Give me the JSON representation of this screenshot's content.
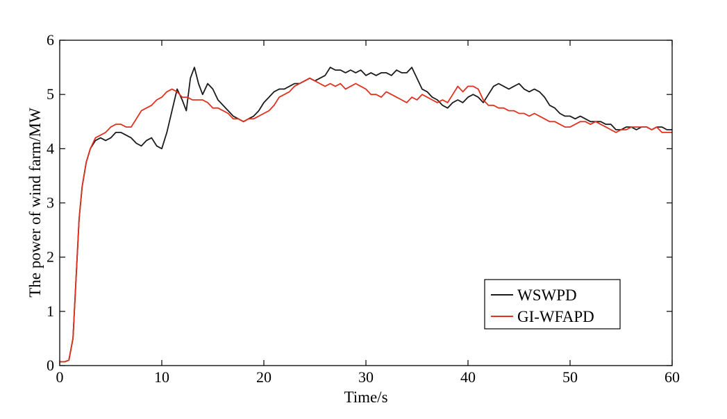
{
  "chart_data": {
    "type": "line",
    "title": "",
    "xlabel": "Time/s",
    "ylabel": "The power of wind farm/MW",
    "xlim": [
      0,
      60
    ],
    "ylim": [
      0,
      6
    ],
    "xticks": [
      0,
      10,
      20,
      30,
      40,
      50,
      60
    ],
    "yticks": [
      0,
      1,
      2,
      3,
      4,
      5,
      6
    ],
    "grid": false,
    "legend_position": "bottom-right",
    "series": [
      {
        "name": "WSWPD",
        "color": "#1a1a1a",
        "points": [
          [
            0,
            0.07
          ],
          [
            0.5,
            0.07
          ],
          [
            0.9,
            0.1
          ],
          [
            1.3,
            0.5
          ],
          [
            1.6,
            1.6
          ],
          [
            1.9,
            2.7
          ],
          [
            2.2,
            3.3
          ],
          [
            2.6,
            3.75
          ],
          [
            3.0,
            4.0
          ],
          [
            3.5,
            4.15
          ],
          [
            4.0,
            4.2
          ],
          [
            4.5,
            4.15
          ],
          [
            5.0,
            4.2
          ],
          [
            5.5,
            4.3
          ],
          [
            6.0,
            4.3
          ],
          [
            6.5,
            4.25
          ],
          [
            7.0,
            4.2
          ],
          [
            7.5,
            4.1
          ],
          [
            8.0,
            4.05
          ],
          [
            8.5,
            4.15
          ],
          [
            9.0,
            4.2
          ],
          [
            9.5,
            4.05
          ],
          [
            10.0,
            4.0
          ],
          [
            10.5,
            4.3
          ],
          [
            11.0,
            4.7
          ],
          [
            11.5,
            5.1
          ],
          [
            12.0,
            4.9
          ],
          [
            12.4,
            4.7
          ],
          [
            12.8,
            5.3
          ],
          [
            13.2,
            5.5
          ],
          [
            13.6,
            5.2
          ],
          [
            14.0,
            5.0
          ],
          [
            14.5,
            5.2
          ],
          [
            15.0,
            5.1
          ],
          [
            15.5,
            4.9
          ],
          [
            16.0,
            4.8
          ],
          [
            16.5,
            4.7
          ],
          [
            17.0,
            4.6
          ],
          [
            17.5,
            4.55
          ],
          [
            18.0,
            4.5
          ],
          [
            18.5,
            4.55
          ],
          [
            19.0,
            4.6
          ],
          [
            19.5,
            4.7
          ],
          [
            20.0,
            4.85
          ],
          [
            20.5,
            4.95
          ],
          [
            21.0,
            5.05
          ],
          [
            21.5,
            5.1
          ],
          [
            22.0,
            5.1
          ],
          [
            22.5,
            5.15
          ],
          [
            23.0,
            5.2
          ],
          [
            23.5,
            5.2
          ],
          [
            24.0,
            5.25
          ],
          [
            24.5,
            5.3
          ],
          [
            25.0,
            5.25
          ],
          [
            25.5,
            5.3
          ],
          [
            26.0,
            5.35
          ],
          [
            26.5,
            5.5
          ],
          [
            27.0,
            5.45
          ],
          [
            27.5,
            5.45
          ],
          [
            28.0,
            5.4
          ],
          [
            28.5,
            5.45
          ],
          [
            29.0,
            5.4
          ],
          [
            29.5,
            5.45
          ],
          [
            30.0,
            5.35
          ],
          [
            30.5,
            5.4
          ],
          [
            31.0,
            5.35
          ],
          [
            31.5,
            5.4
          ],
          [
            32.0,
            5.4
          ],
          [
            32.5,
            5.35
          ],
          [
            33.0,
            5.45
          ],
          [
            33.5,
            5.4
          ],
          [
            34.0,
            5.4
          ],
          [
            34.5,
            5.5
          ],
          [
            35.0,
            5.3
          ],
          [
            35.5,
            5.1
          ],
          [
            36.0,
            5.05
          ],
          [
            36.5,
            4.95
          ],
          [
            37.0,
            4.9
          ],
          [
            37.5,
            4.8
          ],
          [
            38.0,
            4.75
          ],
          [
            38.5,
            4.85
          ],
          [
            39.0,
            4.9
          ],
          [
            39.5,
            4.85
          ],
          [
            40.0,
            4.95
          ],
          [
            40.5,
            5.0
          ],
          [
            41.0,
            4.95
          ],
          [
            41.5,
            4.85
          ],
          [
            42.0,
            5.0
          ],
          [
            42.5,
            5.15
          ],
          [
            43.0,
            5.2
          ],
          [
            43.5,
            5.15
          ],
          [
            44.0,
            5.1
          ],
          [
            44.5,
            5.15
          ],
          [
            45.0,
            5.2
          ],
          [
            45.5,
            5.1
          ],
          [
            46.0,
            5.05
          ],
          [
            46.5,
            5.1
          ],
          [
            47.0,
            5.05
          ],
          [
            47.5,
            4.95
          ],
          [
            48.0,
            4.8
          ],
          [
            48.5,
            4.75
          ],
          [
            49.0,
            4.65
          ],
          [
            49.5,
            4.6
          ],
          [
            50.0,
            4.6
          ],
          [
            50.5,
            4.55
          ],
          [
            51.0,
            4.6
          ],
          [
            51.5,
            4.55
          ],
          [
            52.0,
            4.5
          ],
          [
            52.5,
            4.5
          ],
          [
            53.0,
            4.5
          ],
          [
            53.5,
            4.45
          ],
          [
            54.0,
            4.45
          ],
          [
            54.5,
            4.35
          ],
          [
            55.0,
            4.35
          ],
          [
            55.5,
            4.4
          ],
          [
            56.0,
            4.4
          ],
          [
            56.5,
            4.35
          ],
          [
            57.0,
            4.4
          ],
          [
            57.5,
            4.4
          ],
          [
            58.0,
            4.35
          ],
          [
            58.5,
            4.4
          ],
          [
            59.0,
            4.4
          ],
          [
            59.5,
            4.35
          ],
          [
            60.0,
            4.35
          ]
        ]
      },
      {
        "name": "GI-WFAPD",
        "color": "#e0301e",
        "points": [
          [
            0,
            0.07
          ],
          [
            0.5,
            0.07
          ],
          [
            0.9,
            0.1
          ],
          [
            1.3,
            0.5
          ],
          [
            1.6,
            1.6
          ],
          [
            1.9,
            2.7
          ],
          [
            2.2,
            3.3
          ],
          [
            2.6,
            3.75
          ],
          [
            3.0,
            4.0
          ],
          [
            3.5,
            4.2
          ],
          [
            4.0,
            4.25
          ],
          [
            4.5,
            4.3
          ],
          [
            5.0,
            4.4
          ],
          [
            5.5,
            4.45
          ],
          [
            6.0,
            4.45
          ],
          [
            6.5,
            4.4
          ],
          [
            7.0,
            4.4
          ],
          [
            7.5,
            4.55
          ],
          [
            8.0,
            4.7
          ],
          [
            8.5,
            4.75
          ],
          [
            9.0,
            4.8
          ],
          [
            9.5,
            4.9
          ],
          [
            10.0,
            4.95
          ],
          [
            10.5,
            5.05
          ],
          [
            11.0,
            5.1
          ],
          [
            11.5,
            5.05
          ],
          [
            12.0,
            4.95
          ],
          [
            12.5,
            4.95
          ],
          [
            13.0,
            4.9
          ],
          [
            13.5,
            4.9
          ],
          [
            14.0,
            4.9
          ],
          [
            14.5,
            4.85
          ],
          [
            15.0,
            4.75
          ],
          [
            15.5,
            4.75
          ],
          [
            16.0,
            4.7
          ],
          [
            16.5,
            4.65
          ],
          [
            17.0,
            4.55
          ],
          [
            17.5,
            4.55
          ],
          [
            18.0,
            4.5
          ],
          [
            18.5,
            4.55
          ],
          [
            19.0,
            4.55
          ],
          [
            19.5,
            4.6
          ],
          [
            20.0,
            4.65
          ],
          [
            20.5,
            4.7
          ],
          [
            21.0,
            4.8
          ],
          [
            21.5,
            4.95
          ],
          [
            22.0,
            5.0
          ],
          [
            22.5,
            5.05
          ],
          [
            23.0,
            5.15
          ],
          [
            23.5,
            5.2
          ],
          [
            24.0,
            5.25
          ],
          [
            24.5,
            5.3
          ],
          [
            25.0,
            5.25
          ],
          [
            25.5,
            5.2
          ],
          [
            26.0,
            5.15
          ],
          [
            26.5,
            5.2
          ],
          [
            27.0,
            5.15
          ],
          [
            27.5,
            5.2
          ],
          [
            28.0,
            5.1
          ],
          [
            28.5,
            5.15
          ],
          [
            29.0,
            5.2
          ],
          [
            29.5,
            5.15
          ],
          [
            30.0,
            5.1
          ],
          [
            30.5,
            5.0
          ],
          [
            31.0,
            5.0
          ],
          [
            31.5,
            4.95
          ],
          [
            32.0,
            5.05
          ],
          [
            32.5,
            5.0
          ],
          [
            33.0,
            4.95
          ],
          [
            33.5,
            4.9
          ],
          [
            34.0,
            4.85
          ],
          [
            34.5,
            4.95
          ],
          [
            35.0,
            4.9
          ],
          [
            35.5,
            5.0
          ],
          [
            36.0,
            4.95
          ],
          [
            36.5,
            4.9
          ],
          [
            37.0,
            4.85
          ],
          [
            37.5,
            4.9
          ],
          [
            38.0,
            4.85
          ],
          [
            38.5,
            5.0
          ],
          [
            39.0,
            5.15
          ],
          [
            39.5,
            5.05
          ],
          [
            40.0,
            5.15
          ],
          [
            40.5,
            5.15
          ],
          [
            41.0,
            5.1
          ],
          [
            41.5,
            4.9
          ],
          [
            42.0,
            4.8
          ],
          [
            42.5,
            4.8
          ],
          [
            43.0,
            4.75
          ],
          [
            43.5,
            4.75
          ],
          [
            44.0,
            4.7
          ],
          [
            44.5,
            4.7
          ],
          [
            45.0,
            4.65
          ],
          [
            45.5,
            4.65
          ],
          [
            46.0,
            4.6
          ],
          [
            46.5,
            4.65
          ],
          [
            47.0,
            4.6
          ],
          [
            47.5,
            4.55
          ],
          [
            48.0,
            4.5
          ],
          [
            48.5,
            4.5
          ],
          [
            49.0,
            4.45
          ],
          [
            49.5,
            4.4
          ],
          [
            50.0,
            4.4
          ],
          [
            50.5,
            4.45
          ],
          [
            51.0,
            4.5
          ],
          [
            51.5,
            4.5
          ],
          [
            52.0,
            4.45
          ],
          [
            52.5,
            4.5
          ],
          [
            53.0,
            4.45
          ],
          [
            53.5,
            4.4
          ],
          [
            54.0,
            4.35
          ],
          [
            54.5,
            4.3
          ],
          [
            55.0,
            4.35
          ],
          [
            55.5,
            4.35
          ],
          [
            56.0,
            4.4
          ],
          [
            56.5,
            4.4
          ],
          [
            57.0,
            4.4
          ],
          [
            57.5,
            4.4
          ],
          [
            58.0,
            4.35
          ],
          [
            58.5,
            4.4
          ],
          [
            59.0,
            4.3
          ],
          [
            59.5,
            4.3
          ],
          [
            60.0,
            4.3
          ]
        ]
      }
    ]
  }
}
